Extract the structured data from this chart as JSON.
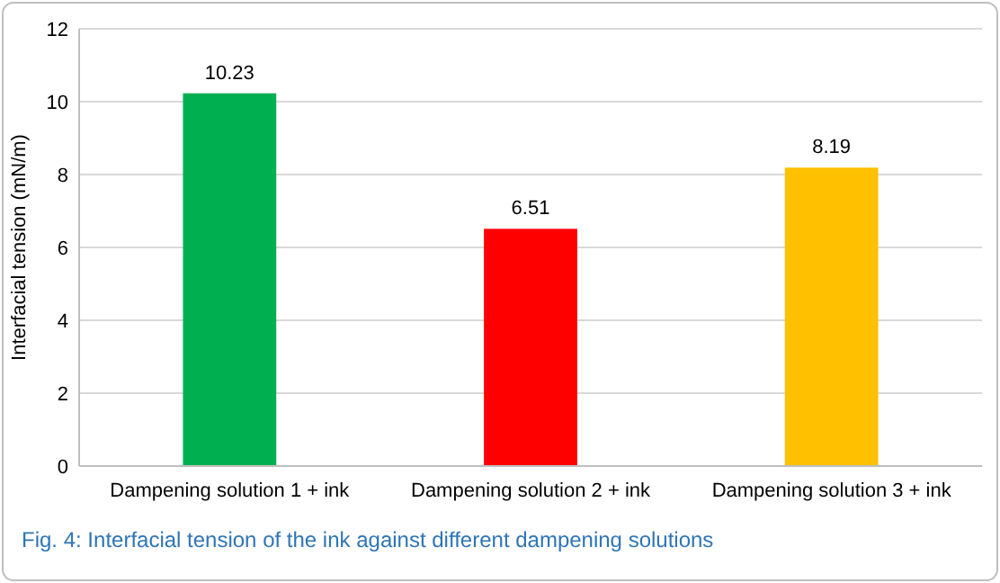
{
  "chart_data": {
    "type": "bar",
    "ylabel": "Interfacial tension (mN/m)",
    "categories": [
      "Dampening solution 1 + ink",
      "Dampening solution 2 + ink",
      "Dampening solution 3 + ink"
    ],
    "values": [
      10.23,
      6.51,
      8.19
    ],
    "colors": [
      "#00b050",
      "#ff0000",
      "#ffc000"
    ],
    "ylim": [
      0,
      12
    ],
    "yticks": [
      0,
      2,
      4,
      6,
      8,
      10,
      12
    ],
    "grid": "y",
    "data_labels": true,
    "annotations": [
      "Fig. 4: Interfacial tension of the ink against different dampening solutions"
    ]
  }
}
